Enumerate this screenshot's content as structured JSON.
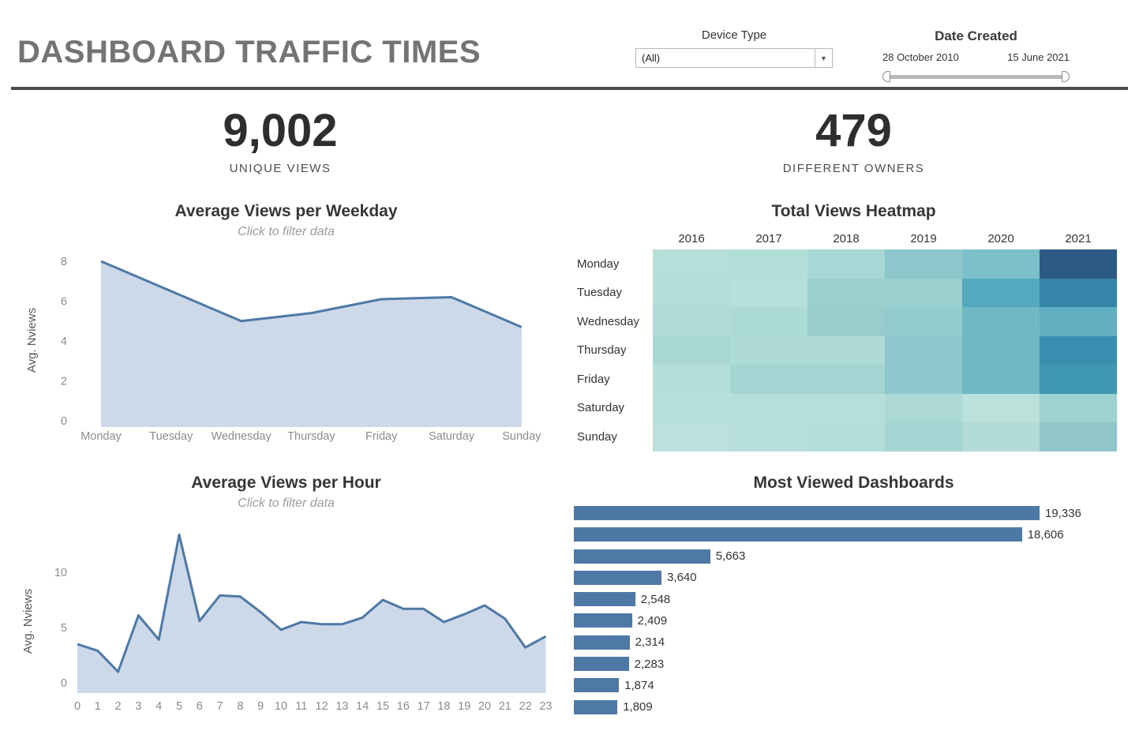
{
  "header": {
    "title": "DASHBOARD TRAFFIC TIMES",
    "device_filter": {
      "label": "Device Type",
      "value": "(All)",
      "caret_icon": "▼"
    },
    "date_filter": {
      "label": "Date Created",
      "start_date": "28 October 2010",
      "end_date": "15 June 2021"
    }
  },
  "kpis": [
    {
      "value": "9,002",
      "label": "UNIQUE VIEWS"
    },
    {
      "value": "479",
      "label": "DIFFERENT OWNERS"
    }
  ],
  "colors": {
    "accent_line": "#4e79a7",
    "area_fill": "#cdd8e8",
    "bar_fill": "#4e79a7",
    "divider": "#4a4a4a"
  },
  "chart_data": [
    {
      "id": "weekday",
      "type": "area",
      "title": "Average Views per Weekday",
      "subtitle": "Click to filter data",
      "ylabel": "Avg. Nviews",
      "xlabel": "",
      "categories": [
        "Monday",
        "Tuesday",
        "Wednesday",
        "Thursday",
        "Friday",
        "Saturday",
        "Sunday"
      ],
      "values": [
        8.0,
        6.5,
        5.0,
        5.4,
        6.1,
        6.2,
        4.7
      ],
      "yticks": [
        0,
        2,
        4,
        6,
        8
      ],
      "ylim": [
        0,
        8.6
      ],
      "grid": false,
      "legend": "none"
    },
    {
      "id": "heatmap",
      "type": "heatmap",
      "title": "Total Views Heatmap",
      "columns": [
        "2016",
        "2017",
        "2018",
        "2019",
        "2020",
        "2021"
      ],
      "rows": [
        "Monday",
        "Tuesday",
        "Wednesday",
        "Thursday",
        "Friday",
        "Saturday",
        "Sunday"
      ],
      "scale_note": "light mint = low total views, dark blue = high total views",
      "cell_colors": [
        [
          "#b6dfd9",
          "#b3ded8",
          "#a7d8d5",
          "#8ec7cb",
          "#7dbfca",
          "#2c5985"
        ],
        [
          "#b3ddd7",
          "#b8e0da",
          "#99d0cf",
          "#99d0cf",
          "#56aabf",
          "#3585a8"
        ],
        [
          "#b1dcd7",
          "#acdad6",
          "#97cecd",
          "#93cccc",
          "#70b8c5",
          "#63afc2"
        ],
        [
          "#a9d8d4",
          "#afdbd6",
          "#afdbd6",
          "#8ec7cb",
          "#70b8c5",
          "#3a8fb0"
        ],
        [
          "#b4ded8",
          "#a4d5d3",
          "#a4d5d3",
          "#8ec7cb",
          "#70b8c5",
          "#4097b3"
        ],
        [
          "#b8e0da",
          "#b6dfd9",
          "#b6dfd9",
          "#acd9d5",
          "#bae1da",
          "#9ed2d1"
        ],
        [
          "#bae1db",
          "#b8e0da",
          "#b4ded8",
          "#a6d6d3",
          "#b3dcd7",
          "#90c6c9"
        ]
      ]
    },
    {
      "id": "hour",
      "type": "area",
      "title": "Average Views per Hour",
      "subtitle": "Click to filter data",
      "ylabel": "Avg. Nviews",
      "xlabel": "",
      "categories": [
        "0",
        "1",
        "2",
        "3",
        "4",
        "5",
        "6",
        "7",
        "8",
        "9",
        "10",
        "11",
        "12",
        "13",
        "14",
        "15",
        "16",
        "17",
        "18",
        "19",
        "20",
        "21",
        "22",
        "23"
      ],
      "values": [
        3.5,
        2.9,
        1.0,
        6.1,
        3.9,
        13.4,
        5.6,
        7.9,
        7.8,
        6.4,
        4.8,
        5.5,
        5.3,
        5.3,
        5.9,
        7.5,
        6.7,
        6.7,
        5.5,
        6.2,
        7.0,
        5.8,
        3.2,
        4.2
      ],
      "yticks": [
        0,
        5,
        10
      ],
      "ylim": [
        0,
        14.2
      ],
      "grid": false,
      "legend": "none"
    },
    {
      "id": "bars",
      "type": "bar",
      "title": "Most Viewed Dashboards",
      "orientation": "horizontal",
      "values": [
        19336,
        18606,
        5663,
        3640,
        2548,
        2409,
        2314,
        2283,
        1874,
        1809
      ],
      "value_labels": [
        "19,336",
        "18,606",
        "5,663",
        "3,640",
        "2,548",
        "2,409",
        "2,314",
        "2,283",
        "1,874",
        "1,809"
      ],
      "xlim": [
        0,
        19336
      ]
    }
  ]
}
